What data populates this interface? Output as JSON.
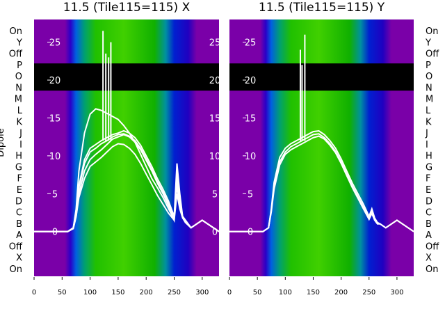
{
  "colors": {
    "background": "#7a00a8",
    "bar": "#000000",
    "line": "#ffffff",
    "axis_text": "#000000",
    "overlay_text": "#ffffff"
  },
  "chart_data": [
    {
      "type": "heatmap",
      "title": "11.5 (Tile115=115) X",
      "ylabel": "Dipole",
      "y_tick_labels_left": [
        "On",
        "Y",
        "Off",
        "P",
        "O",
        "N",
        "M",
        "L",
        "K",
        "J",
        "I",
        "H",
        "G",
        "F",
        "E",
        "D",
        "C",
        "B",
        "A",
        "Off",
        "X",
        "On"
      ],
      "x_ticks": [
        0,
        50,
        100,
        150,
        200,
        250,
        300
      ],
      "xlim": [
        0,
        330
      ],
      "overlay_y_ticks": [
        0,
        5,
        10,
        15,
        20,
        25
      ],
      "overlay_ylim": [
        -6,
        28
      ],
      "black_band": [
        18.6,
        22.2
      ],
      "line_series": [
        {
          "x": [
            0,
            60,
            70,
            75,
            80,
            90,
            100,
            110,
            120,
            130,
            140,
            150,
            160,
            170,
            180,
            190,
            200,
            210,
            220,
            230,
            240,
            250,
            255,
            260,
            265,
            270,
            280,
            300,
            330
          ],
          "y": [
            0,
            0,
            0.5,
            3,
            8,
            13,
            15.5,
            16.2,
            16,
            15.6,
            15.2,
            14.8,
            14,
            13,
            11.8,
            10.2,
            8.6,
            7,
            5.8,
            4.5,
            3,
            1.5,
            8,
            4,
            2,
            1.5,
            0.5,
            1.5,
            0
          ]
        },
        {
          "x": [
            0,
            60,
            70,
            75,
            80,
            90,
            100,
            110,
            120,
            130,
            140,
            150,
            160,
            170,
            180,
            190,
            200,
            210,
            220,
            230,
            240,
            250,
            255,
            260,
            265,
            270,
            280,
            300,
            330
          ],
          "y": [
            0,
            0,
            0.5,
            2.5,
            6,
            9.5,
            11,
            11.5,
            12,
            12.4,
            12.8,
            13,
            13.3,
            13,
            12.4,
            11.4,
            10,
            8.6,
            7,
            5.6,
            4,
            2,
            9,
            5,
            2,
            1.5,
            0.5,
            1.5,
            0
          ]
        },
        {
          "x": [
            0,
            60,
            70,
            75,
            80,
            90,
            100,
            110,
            120,
            130,
            140,
            150,
            160,
            170,
            180,
            190,
            200,
            210,
            220,
            230,
            240,
            250,
            255,
            260,
            265,
            270,
            280,
            300,
            330
          ],
          "y": [
            0,
            0,
            0.5,
            2.5,
            5.8,
            9,
            10.5,
            11,
            11.6,
            12,
            12.5,
            12.8,
            12.9,
            12.6,
            12,
            11,
            9.6,
            8.2,
            6.6,
            5.2,
            3.6,
            2,
            7,
            4,
            2,
            1.5,
            0.5,
            1.5,
            0
          ]
        },
        {
          "x": [
            0,
            60,
            70,
            75,
            80,
            90,
            100,
            110,
            120,
            130,
            140,
            150,
            160,
            170,
            180,
            190,
            200,
            210,
            220,
            230,
            240,
            250,
            255,
            260,
            265,
            270,
            280,
            300,
            330
          ],
          "y": [
            0,
            0,
            0.4,
            2,
            5,
            8,
            9.5,
            10.2,
            10.8,
            11.5,
            12.2,
            12.5,
            12.8,
            12.5,
            11.8,
            10.8,
            9.4,
            8,
            6.4,
            5,
            3.4,
            1.8,
            6,
            3.5,
            2,
            1.2,
            0.5,
            1.5,
            0
          ]
        },
        {
          "x": [
            0,
            60,
            70,
            75,
            80,
            90,
            100,
            110,
            120,
            130,
            140,
            150,
            160,
            170,
            180,
            190,
            200,
            210,
            220,
            230,
            240,
            250,
            255,
            260,
            265,
            270,
            280,
            300,
            330
          ],
          "y": [
            0,
            0,
            0.4,
            2,
            4.5,
            7,
            8.6,
            9.2,
            9.8,
            10.5,
            11.2,
            11.6,
            11.5,
            11,
            10.2,
            9,
            7.6,
            6.2,
            4.8,
            3.6,
            2.4,
            1.5,
            5,
            3,
            1.8,
            1.2,
            0.5,
            1.5,
            0
          ]
        }
      ],
      "spikes": [
        {
          "x": 123,
          "y": 26.5
        },
        {
          "x": 128,
          "y": 23.5
        },
        {
          "x": 133,
          "y": 23
        },
        {
          "x": 137,
          "y": 25
        }
      ],
      "hline_y": -6
    },
    {
      "type": "heatmap",
      "title": "11.5 (Tile115=115) Y",
      "y_tick_labels_right": [
        "On",
        "Y",
        "Off",
        "P",
        "O",
        "N",
        "M",
        "L",
        "K",
        "J",
        "I",
        "H",
        "G",
        "F",
        "E",
        "D",
        "C",
        "B",
        "A",
        "Off",
        "X",
        "On"
      ],
      "x_ticks": [
        0,
        50,
        100,
        150,
        200,
        250,
        300
      ],
      "xlim": [
        0,
        330
      ],
      "overlay_y_ticks": [
        0,
        5,
        10,
        15,
        20,
        25
      ],
      "overlay_ylim": [
        -6,
        28
      ],
      "black_band": [
        18.6,
        22.2
      ],
      "line_series": [
        {
          "x": [
            0,
            60,
            70,
            75,
            80,
            90,
            100,
            110,
            120,
            130,
            140,
            150,
            160,
            170,
            180,
            190,
            200,
            210,
            220,
            230,
            240,
            250,
            255,
            260,
            265,
            270,
            280,
            300,
            330
          ],
          "y": [
            0,
            0,
            0.5,
            3,
            6.5,
            9.8,
            11,
            11.6,
            12,
            12.4,
            12.8,
            13.2,
            13.3,
            12.8,
            12,
            11,
            9.6,
            8,
            6.4,
            5,
            3.6,
            2,
            3,
            1.8,
            1.2,
            1,
            0.5,
            1.5,
            0
          ]
        },
        {
          "x": [
            0,
            60,
            70,
            75,
            80,
            90,
            100,
            110,
            120,
            130,
            140,
            150,
            160,
            170,
            180,
            190,
            200,
            210,
            220,
            230,
            240,
            250,
            255,
            260,
            265,
            270,
            280,
            300,
            330
          ],
          "y": [
            0,
            0,
            0.5,
            2.8,
            6,
            9.2,
            10.5,
            11.2,
            11.6,
            12,
            12.4,
            12.8,
            12.9,
            12.4,
            11.6,
            10.6,
            9.2,
            7.6,
            6,
            4.6,
            3.2,
            1.8,
            2.6,
            1.6,
            1.1,
            1,
            0.5,
            1.5,
            0
          ]
        },
        {
          "x": [
            0,
            60,
            70,
            75,
            80,
            90,
            100,
            110,
            120,
            130,
            140,
            150,
            160,
            170,
            180,
            190,
            200,
            210,
            220,
            230,
            240,
            250,
            255,
            260,
            265,
            270,
            280,
            300,
            330
          ],
          "y": [
            0,
            0,
            0.5,
            2.6,
            5.6,
            8.8,
            10.2,
            10.8,
            11.2,
            11.6,
            12,
            12.4,
            12.6,
            12.2,
            11.4,
            10.4,
            9,
            7.4,
            5.8,
            4.4,
            3,
            1.6,
            2.4,
            1.5,
            1,
            1,
            0.5,
            1.5,
            0
          ]
        }
      ],
      "spikes": [
        {
          "x": 127,
          "y": 24
        },
        {
          "x": 130,
          "y": 22
        },
        {
          "x": 135,
          "y": 26
        }
      ],
      "hline_y": -6
    }
  ]
}
